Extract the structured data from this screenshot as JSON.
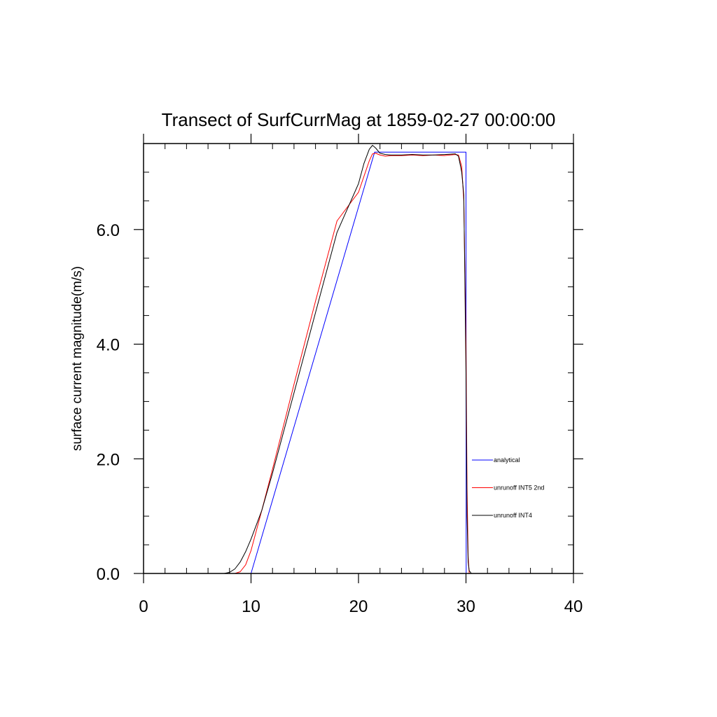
{
  "chart_data": {
    "type": "line",
    "title": "Transect of SurfCurrMag at 1859-02-27 00:00:00",
    "xlabel": "",
    "ylabel": "surface current magnitude(m/s)",
    "xlim": [
      0,
      40
    ],
    "ylim": [
      0,
      7.5
    ],
    "x_ticks": [
      0,
      10,
      20,
      30,
      40
    ],
    "x_tick_labels": [
      "0",
      "10",
      "20",
      "30",
      "40"
    ],
    "y_ticks": [
      0,
      2,
      4,
      6
    ],
    "y_tick_labels": [
      "0.0",
      "2.0",
      "4.0",
      "6.0"
    ],
    "grid": false,
    "legend_position": "bottom-right inside plot",
    "series": [
      {
        "name": "analytical",
        "color": "#0000ff",
        "x": [
          0,
          10,
          21.5,
          30,
          30.02,
          40
        ],
        "y": [
          0,
          0,
          7.35,
          7.35,
          0,
          0
        ]
      },
      {
        "name": "unrunoff INT5 2nd",
        "color": "#ff0000",
        "x": [
          0,
          8.5,
          9,
          9.5,
          10,
          10.5,
          11,
          12,
          14,
          16,
          18,
          20,
          21,
          21.3,
          21.6,
          22,
          22.5,
          23,
          24,
          25,
          26,
          27,
          28,
          29,
          29.3,
          29.6,
          29.8,
          30,
          30.1,
          30.2,
          30.3,
          40
        ],
        "y": [
          0,
          0,
          0.03,
          0.15,
          0.4,
          0.75,
          1.1,
          1.82,
          3.3,
          4.75,
          6.15,
          6.65,
          7.2,
          7.32,
          7.33,
          7.3,
          7.28,
          7.29,
          7.29,
          7.3,
          7.29,
          7.3,
          7.29,
          7.31,
          7.3,
          7.1,
          6.5,
          4.0,
          1.5,
          0.3,
          0,
          0
        ]
      },
      {
        "name": "unrunoff INT4",
        "color": "#000000",
        "x": [
          0,
          7.5,
          8,
          8.5,
          9,
          9.5,
          10,
          10.5,
          11,
          12,
          14,
          16,
          18,
          20,
          20.5,
          21,
          21.3,
          21.6,
          22,
          22.5,
          23,
          24,
          25,
          26,
          27,
          28,
          29,
          29.3,
          29.6,
          29.8,
          30,
          30.1,
          30.2,
          30.3,
          30.5,
          40
        ],
        "y": [
          0,
          0,
          0.02,
          0.08,
          0.2,
          0.38,
          0.6,
          0.85,
          1.1,
          1.75,
          3.15,
          4.55,
          5.95,
          6.8,
          7.15,
          7.4,
          7.47,
          7.42,
          7.33,
          7.31,
          7.3,
          7.3,
          7.31,
          7.3,
          7.3,
          7.31,
          7.32,
          7.28,
          7.0,
          6.6,
          3.5,
          1.0,
          0.2,
          0.05,
          0,
          0
        ]
      }
    ]
  }
}
